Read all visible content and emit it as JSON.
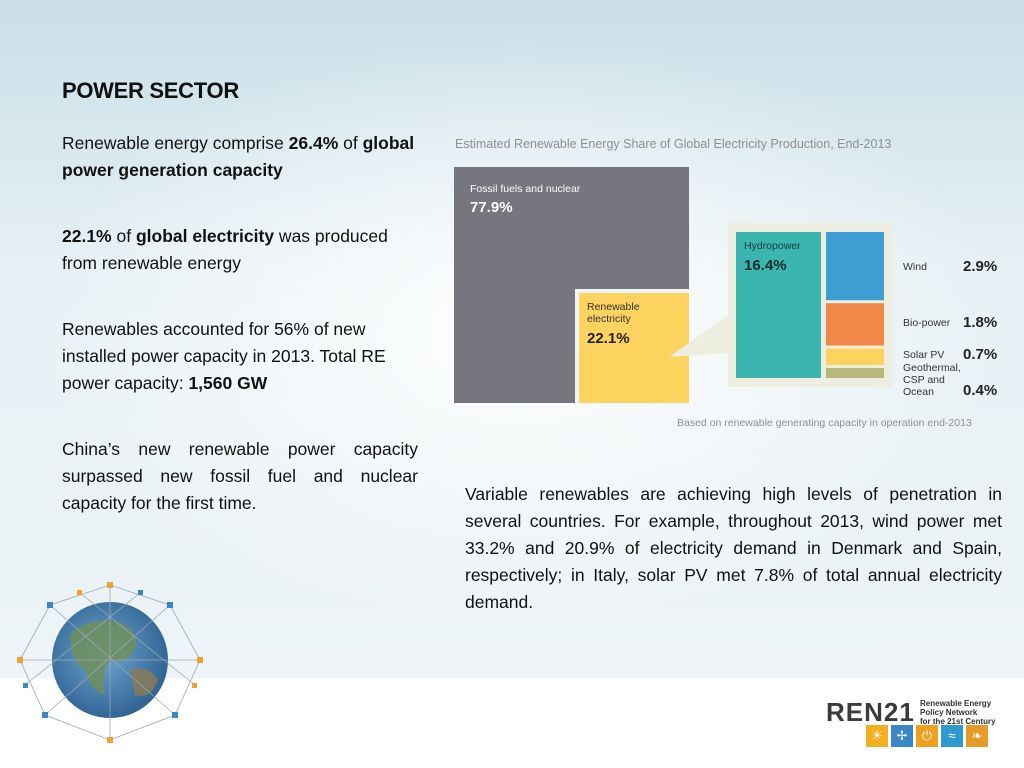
{
  "slide": {
    "title": "POWER SECTOR",
    "left_column": [
      {
        "parts": [
          {
            "text": "Renewable energy comprise ",
            "bold": false
          },
          {
            "text": "26.4%",
            "bold": true
          },
          {
            "text": " of ",
            "bold": false
          },
          {
            "text": "global power generation capacity",
            "bold": true
          }
        ]
      },
      {
        "parts": [
          {
            "text": "22.1%",
            "bold": true
          },
          {
            "text": " of ",
            "bold": false
          },
          {
            "text": "global electricity",
            "bold": true
          },
          {
            "text": " was produced from renewable energy",
            "bold": false
          }
        ]
      },
      {
        "parts": [
          {
            "text": "Renewables accounted for 56% of new installed power capacity in 2013. Total RE power capacity: ",
            "bold": false
          },
          {
            "text": "1,560 GW",
            "bold": true
          }
        ]
      },
      {
        "justify": true,
        "parts": [
          {
            "text": "China’s new renewable power capacity surpassed new fossil fuel and nuclear capacity for the first time.",
            "bold": false
          }
        ]
      }
    ],
    "right_paragraph": "Variable renewables are achieving high levels of penetration in several countries. For example, throughout 2013, wind power met 33.2% and 20.9% of electricity demand in Denmark and Spain, respectively; in Italy, solar PV met 7.8% of total annual electricity demand.",
    "logo": {
      "name_left": "REN",
      "name_right": "21",
      "tagline": [
        "Renewable Energy",
        "Policy Network",
        "for the 21st Century"
      ],
      "icons": [
        "sun-icon",
        "wind-turbine-icon",
        "power-icon",
        "waves-icon",
        "leaf-icon"
      ],
      "colors": [
        "#f2b01e",
        "#3a87c8",
        "#f0a020",
        "#2e9ad0",
        "#e89a28"
      ]
    }
  },
  "chart_data": {
    "type": "treemap",
    "title": "Estimated Renewable Energy Share of Global Electricity Production, End-2013",
    "footnote": "Based on renewable generating capacity in operation end-2013",
    "segments": [
      {
        "label": "Fossil fuels and nuclear",
        "value_label": "77.9%",
        "value": 77.9,
        "color": "#77757e"
      },
      {
        "label": "Renewable electricity",
        "value_label": "22.1%",
        "value": 22.1,
        "color": "#fcd35f"
      }
    ],
    "renewable_breakdown": [
      {
        "label": "Hydropower",
        "value_label": "16.4%",
        "value": 16.4,
        "color": "#3bb5b0"
      },
      {
        "label": "Wind",
        "value_label": "2.9%",
        "value": 2.9,
        "color": "#3e9ed4"
      },
      {
        "label": "Bio-power",
        "value_label": "1.8%",
        "value": 1.8,
        "color": "#f0884a"
      },
      {
        "label": "Solar PV",
        "value_label": "0.7%",
        "value": 0.7,
        "color": "#fcd35f"
      },
      {
        "label": "Geothermal, CSP and Ocean",
        "value_label": "0.4%",
        "value": 0.4,
        "color": "#b7b77c"
      }
    ]
  }
}
